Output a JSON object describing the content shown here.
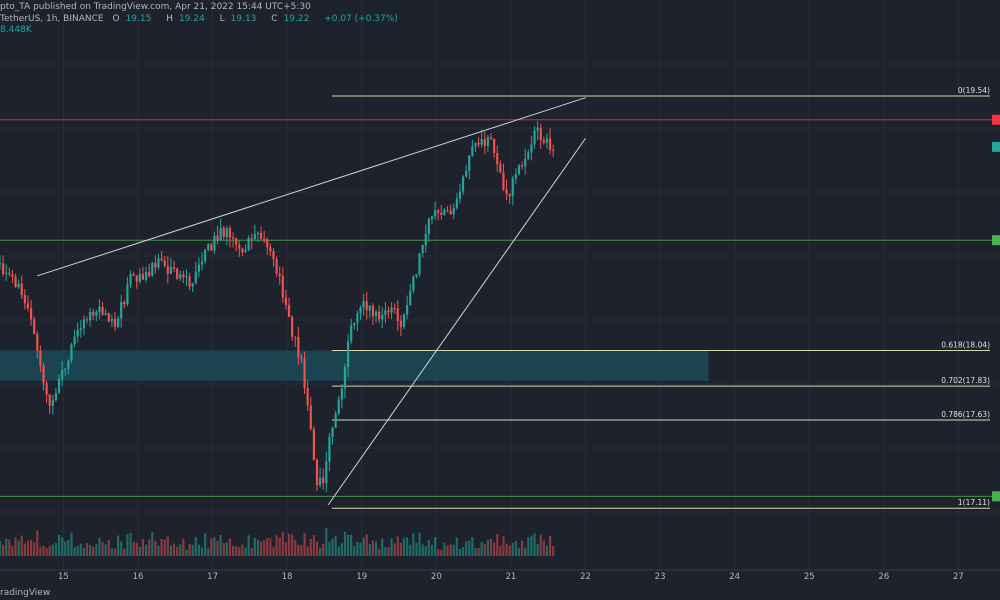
{
  "header": {
    "published": "pto_TA published on TradingView.com, Apr 21, 2022 15:44 UTC+5:30",
    "symbol": "TetherUS, 1h, BINANCE",
    "o_label": "O",
    "o": "19.15",
    "h_label": "H",
    "h": "19.24",
    "l_label": "L",
    "l": "19.13",
    "c_label": "C",
    "c": "19.22",
    "change": "+0.07 (+0.37%)",
    "volume": "8.448K"
  },
  "footer": {
    "brand": "radingView"
  },
  "colors": {
    "background": "#1e222d",
    "grid": "#2a2e39",
    "up": "#26a69a",
    "down": "#ef5350",
    "vol_up": "#1f6b66",
    "vol_down": "#8a3a3d",
    "fib": "#d8d8b0",
    "resistance": "#f23645",
    "support": "#4caf50",
    "zone": "#1b4a5a",
    "trend": "#d1d4dc"
  },
  "chart_data": {
    "type": "candlestick",
    "x_ticks": [
      "15",
      "16",
      "17",
      "18",
      "19",
      "20",
      "21",
      "22",
      "23",
      "24",
      "25",
      "26",
      "27"
    ],
    "x_tick_values": [
      15,
      16,
      17,
      18,
      19,
      20,
      21,
      22,
      23,
      24,
      25,
      26,
      27
    ],
    "xlim": [
      14.15,
      27.45
    ],
    "ylim": [
      16.97,
      19.87
    ],
    "price_path": [
      [
        14.15,
        18.55
      ],
      [
        14.35,
        18.45
      ],
      [
        14.55,
        18.3
      ],
      [
        14.7,
        17.95
      ],
      [
        14.8,
        17.7
      ],
      [
        14.9,
        17.8
      ],
      [
        15.1,
        18.05
      ],
      [
        15.3,
        18.25
      ],
      [
        15.5,
        18.3
      ],
      [
        15.7,
        18.2
      ],
      [
        15.9,
        18.45
      ],
      [
        16.1,
        18.5
      ],
      [
        16.3,
        18.55
      ],
      [
        16.5,
        18.5
      ],
      [
        16.7,
        18.45
      ],
      [
        16.9,
        18.6
      ],
      [
        17.1,
        18.75
      ],
      [
        17.25,
        18.72
      ],
      [
        17.4,
        18.65
      ],
      [
        17.6,
        18.7
      ],
      [
        17.8,
        18.62
      ],
      [
        17.95,
        18.35
      ],
      [
        18.1,
        18.1
      ],
      [
        18.2,
        17.95
      ],
      [
        18.3,
        17.6
      ],
      [
        18.4,
        17.25
      ],
      [
        18.5,
        17.3
      ],
      [
        18.6,
        17.6
      ],
      [
        18.7,
        17.75
      ],
      [
        18.85,
        18.15
      ],
      [
        19.0,
        18.3
      ],
      [
        19.2,
        18.25
      ],
      [
        19.4,
        18.3
      ],
      [
        19.55,
        18.2
      ],
      [
        19.7,
        18.45
      ],
      [
        19.85,
        18.75
      ],
      [
        20.0,
        18.9
      ],
      [
        20.15,
        18.85
      ],
      [
        20.3,
        18.95
      ],
      [
        20.45,
        19.2
      ],
      [
        20.6,
        19.3
      ],
      [
        20.75,
        19.25
      ],
      [
        20.85,
        19.1
      ],
      [
        20.95,
        18.95
      ],
      [
        21.05,
        19.05
      ],
      [
        21.2,
        19.2
      ],
      [
        21.35,
        19.35
      ],
      [
        21.5,
        19.25
      ],
      [
        21.6,
        19.22
      ]
    ],
    "vol_base_k": 4.5,
    "vol_max_k": 40,
    "fib_levels": [
      {
        "label": "0(19.54)",
        "value": 19.54,
        "x_start": 18.6
      },
      {
        "label": "0.618(18.04)",
        "value": 18.04,
        "x_start": 18.6
      },
      {
        "label": "0.702(17.83)",
        "value": 17.83,
        "x_start": 18.6
      },
      {
        "label": "0.786(17.63)",
        "value": 17.63,
        "x_start": 18.6
      },
      {
        "label": "1(17.11)",
        "value": 17.11,
        "x_start": 18.6
      }
    ],
    "horizontal_lines": [
      {
        "value": 19.4,
        "color": "resistance"
      },
      {
        "value": 18.69,
        "color": "support"
      },
      {
        "value": 17.18,
        "color": "support"
      }
    ],
    "demand_zone": {
      "x1": 14.15,
      "x2": 23.65,
      "y1": 18.04,
      "y2": 17.86
    },
    "trendlines": [
      {
        "x1": 14.65,
        "y1": 18.48,
        "x2": 22.0,
        "y2": 19.53
      },
      {
        "x1": 18.55,
        "y1": 17.13,
        "x2": 22.0,
        "y2": 19.29
      }
    ],
    "price_markers": [
      {
        "value": 19.4,
        "color": "resistance"
      },
      {
        "value": 19.24,
        "color": "up"
      },
      {
        "value": 18.69,
        "color": "support"
      },
      {
        "value": 17.18,
        "color": "support"
      }
    ],
    "seed": 7
  }
}
